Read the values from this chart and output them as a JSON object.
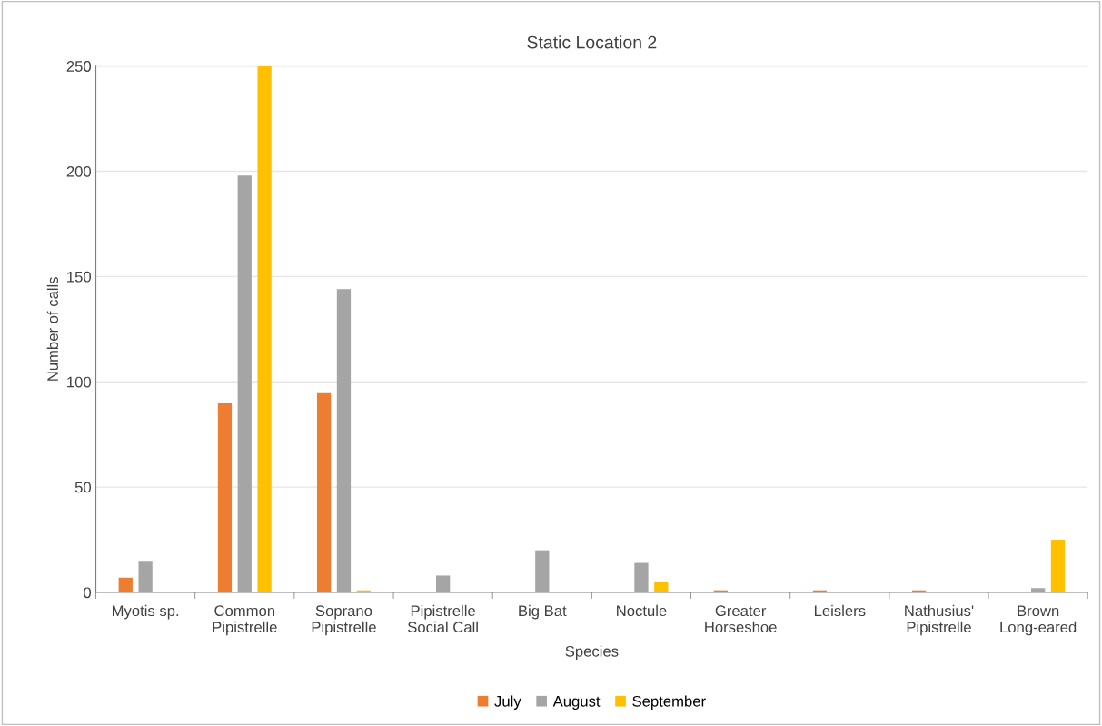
{
  "chart_data": {
    "type": "bar",
    "title": "Static Location 2",
    "xlabel": "Species",
    "ylabel": "Number of calls",
    "categories": [
      "Myotis sp.",
      "Common\nPipistrelle",
      "Soprano\nPipistrelle",
      "Pipistrelle\nSocial Call",
      "Big Bat",
      "Noctule",
      "Greater\nHorseshoe",
      "Leislers",
      "Nathusius'\nPipistrelle",
      "Brown\nLong-eared"
    ],
    "series": [
      {
        "name": "July",
        "color": "#ed7d31",
        "values": [
          7,
          90,
          95,
          null,
          null,
          null,
          1,
          1,
          1,
          null
        ]
      },
      {
        "name": "August",
        "color": "#a5a5a5",
        "values": [
          15,
          198,
          144,
          8,
          20,
          14,
          null,
          null,
          null,
          2
        ]
      },
      {
        "name": "September",
        "color": "#ffc000",
        "values": [
          null,
          250,
          1,
          null,
          null,
          5,
          null,
          null,
          null,
          25
        ]
      }
    ],
    "ylim": [
      0,
      250
    ],
    "yticks": [
      0,
      50,
      100,
      150,
      200,
      250
    ],
    "grid": "y",
    "legend": "bottom"
  }
}
